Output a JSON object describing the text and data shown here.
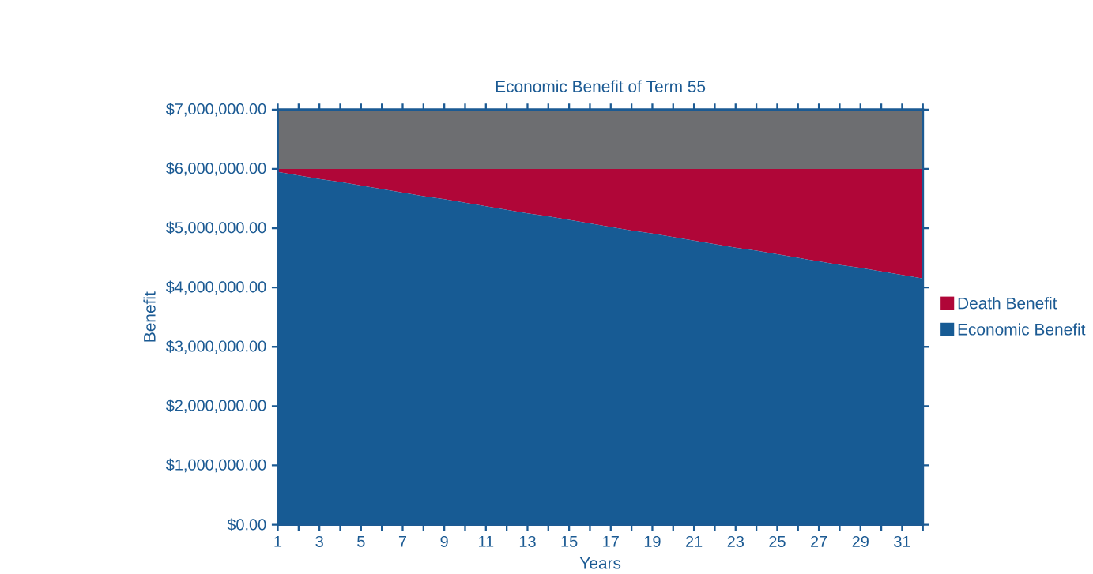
{
  "chart_data": {
    "type": "area",
    "title": "Economic Benefit of Term 55",
    "xlabel": "Years",
    "ylabel": "Benefit",
    "categories": [
      "1",
      null,
      "3",
      null,
      "5",
      null,
      "7",
      null,
      "9",
      null,
      "11",
      null,
      "13",
      null,
      "15",
      null,
      "17",
      null,
      "19",
      null,
      "21",
      null,
      "23",
      null,
      "25",
      null,
      "27",
      null,
      "29",
      null,
      "31",
      null
    ],
    "stacked": true,
    "series": [
      {
        "name": "Economic Benefit",
        "color": "#175b94",
        "values": [
          5950000,
          5890000,
          5830000,
          5780000,
          5720000,
          5660000,
          5600000,
          5540000,
          5490000,
          5430000,
          5370000,
          5310000,
          5250000,
          5200000,
          5140000,
          5080000,
          5020000,
          4960000,
          4910000,
          4850000,
          4790000,
          4730000,
          4670000,
          4620000,
          4560000,
          4500000,
          4440000,
          4380000,
          4330000,
          4270000,
          4210000,
          4150000
        ]
      },
      {
        "name": "Death Benefit",
        "color": "#b00638",
        "values": [
          50000,
          110000,
          170000,
          220000,
          280000,
          340000,
          400000,
          460000,
          510000,
          570000,
          630000,
          690000,
          750000,
          800000,
          860000,
          920000,
          980000,
          1040000,
          1090000,
          1150000,
          1210000,
          1270000,
          1330000,
          1380000,
          1440000,
          1500000,
          1560000,
          1620000,
          1670000,
          1730000,
          1790000,
          1850000
        ]
      },
      {
        "color": "#6d6e71",
        "values": [
          1000000,
          1000000,
          1000000,
          1000000,
          1000000,
          1000000,
          1000000,
          1000000,
          1000000,
          1000000,
          1000000,
          1000000,
          1000000,
          1000000,
          1000000,
          1000000,
          1000000,
          1000000,
          1000000,
          1000000,
          1000000,
          1000000,
          1000000,
          1000000,
          1000000,
          1000000,
          1000000,
          1000000,
          1000000,
          1000000,
          1000000,
          1000000
        ]
      }
    ],
    "ylim": [
      0,
      7000000
    ],
    "yticks": [
      {
        "value": 0,
        "label": "$0.00"
      },
      {
        "value": 1000000,
        "label": "$1,000,000.00"
      },
      {
        "value": 2000000,
        "label": "$2,000,000.00"
      },
      {
        "value": 3000000,
        "label": "$3,000,000.00"
      },
      {
        "value": 4000000,
        "label": "$4,000,000.00"
      },
      {
        "value": 5000000,
        "label": "$5,000,000.00"
      },
      {
        "value": 6000000,
        "label": "$6,000,000.00"
      },
      {
        "value": 7000000,
        "label": "$7,000,000.00"
      }
    ],
    "legend": "right"
  }
}
